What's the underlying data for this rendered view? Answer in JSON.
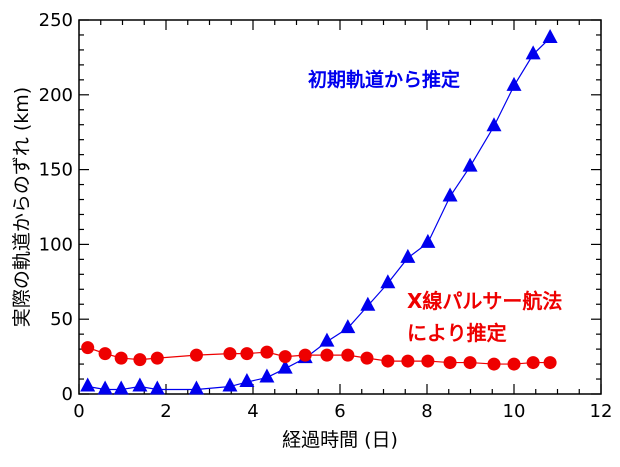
{
  "chart_data": {
    "type": "line",
    "xlabel": "経過時間 (日)",
    "ylabel": "実際の軌道からのずれ (km)",
    "xlim": [
      0,
      12
    ],
    "ylim": [
      0,
      250
    ],
    "x_ticks": [
      "0",
      "2",
      "4",
      "6",
      "8",
      "10",
      "12"
    ],
    "y_ticks": [
      "0",
      "50",
      "100",
      "150",
      "200",
      "250"
    ],
    "grid": false,
    "series": [
      {
        "name": "初期軌道から推定",
        "color": "#0000ee",
        "marker": "triangle",
        "x": [
          0.2,
          0.6,
          0.97,
          1.4,
          1.8,
          2.7,
          3.47,
          3.86,
          4.32,
          4.74,
          5.2,
          5.7,
          6.18,
          6.64,
          7.1,
          7.56,
          8.02,
          8.53,
          8.99,
          9.54,
          10.0,
          10.44,
          10.83
        ],
        "y": [
          5,
          3,
          3,
          5,
          3,
          3,
          5,
          8,
          11,
          17,
          24,
          35,
          44,
          59,
          74,
          91,
          101,
          132,
          152,
          179,
          206,
          227,
          238
        ]
      },
      {
        "name": "X線パルサー航法\nにより推定",
        "name_lines": [
          "X線パルサー航法",
          "により推定"
        ],
        "color": "#ee0000",
        "marker": "circle",
        "x": [
          0.2,
          0.6,
          0.97,
          1.4,
          1.8,
          2.7,
          3.47,
          3.86,
          4.32,
          4.74,
          5.2,
          5.7,
          6.18,
          6.62,
          7.1,
          7.56,
          8.02,
          8.53,
          8.99,
          9.54,
          10.0,
          10.44,
          10.83
        ],
        "y": [
          31,
          27,
          24,
          23,
          24,
          26,
          27,
          27,
          28,
          25,
          26,
          26,
          26,
          24,
          22,
          22,
          22,
          21,
          21,
          20,
          20,
          21,
          21
        ]
      }
    ]
  }
}
